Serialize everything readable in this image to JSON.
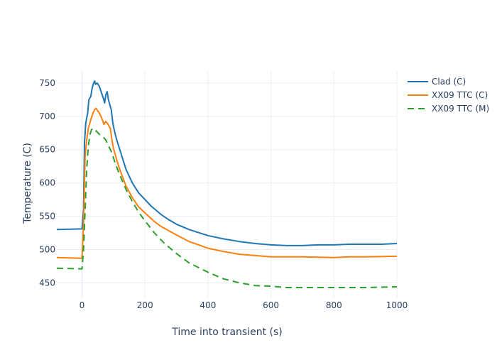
{
  "chart_data": {
    "type": "line",
    "title": "",
    "xlabel": "Time into transient (s)",
    "ylabel": "Temperature (C)",
    "xlim": [
      -80,
      1000
    ],
    "ylim": [
      427,
      768
    ],
    "xticks": [
      0,
      200,
      400,
      600,
      800,
      1000
    ],
    "yticks": [
      450,
      500,
      550,
      600,
      650,
      700,
      750
    ],
    "grid": true,
    "legend_position": "top-right",
    "series": [
      {
        "name": "Clad (C)",
        "color": "#1f77b4",
        "dash": "solid",
        "points": [
          [
            -80,
            530
          ],
          [
            0,
            531
          ],
          [
            5,
            560
          ],
          [
            8,
            660
          ],
          [
            12,
            690
          ],
          [
            18,
            705
          ],
          [
            22,
            725
          ],
          [
            28,
            730
          ],
          [
            32,
            742
          ],
          [
            37,
            750
          ],
          [
            40,
            753
          ],
          [
            43,
            748
          ],
          [
            48,
            750
          ],
          [
            55,
            745
          ],
          [
            62,
            735
          ],
          [
            68,
            727
          ],
          [
            72,
            720
          ],
          [
            76,
            733
          ],
          [
            80,
            737
          ],
          [
            84,
            725
          ],
          [
            88,
            718
          ],
          [
            93,
            710
          ],
          [
            98,
            690
          ],
          [
            103,
            678
          ],
          [
            110,
            665
          ],
          [
            120,
            650
          ],
          [
            130,
            635
          ],
          [
            140,
            620
          ],
          [
            160,
            600
          ],
          [
            180,
            585
          ],
          [
            200,
            575
          ],
          [
            220,
            565
          ],
          [
            250,
            553
          ],
          [
            275,
            545
          ],
          [
            300,
            538
          ],
          [
            340,
            530
          ],
          [
            400,
            521
          ],
          [
            450,
            516
          ],
          [
            500,
            512
          ],
          [
            550,
            509
          ],
          [
            600,
            507
          ],
          [
            650,
            506
          ],
          [
            700,
            506
          ],
          [
            750,
            507
          ],
          [
            800,
            507
          ],
          [
            850,
            508
          ],
          [
            900,
            508
          ],
          [
            950,
            508
          ],
          [
            1000,
            509
          ]
        ]
      },
      {
        "name": "XX09 TTC (C)",
        "color": "#ff7f0e",
        "dash": "solid",
        "points": [
          [
            -80,
            488
          ],
          [
            0,
            487
          ],
          [
            5,
            540
          ],
          [
            10,
            640
          ],
          [
            15,
            665
          ],
          [
            20,
            682
          ],
          [
            28,
            695
          ],
          [
            35,
            705
          ],
          [
            40,
            710
          ],
          [
            45,
            712
          ],
          [
            50,
            708
          ],
          [
            55,
            705
          ],
          [
            62,
            698
          ],
          [
            70,
            688
          ],
          [
            75,
            692
          ],
          [
            80,
            690
          ],
          [
            85,
            686
          ],
          [
            90,
            682
          ],
          [
            95,
            665
          ],
          [
            100,
            652
          ],
          [
            110,
            635
          ],
          [
            120,
            620
          ],
          [
            140,
            595
          ],
          [
            160,
            578
          ],
          [
            180,
            564
          ],
          [
            200,
            555
          ],
          [
            230,
            542
          ],
          [
            250,
            535
          ],
          [
            300,
            522
          ],
          [
            340,
            512
          ],
          [
            400,
            502
          ],
          [
            450,
            497
          ],
          [
            500,
            493
          ],
          [
            550,
            491
          ],
          [
            600,
            489
          ],
          [
            700,
            489
          ],
          [
            800,
            488
          ],
          [
            850,
            489
          ],
          [
            900,
            489
          ],
          [
            1000,
            490
          ]
        ]
      },
      {
        "name": "XX09 TTC (M)",
        "color": "#2ca02c",
        "dash": "dash",
        "points": [
          [
            -80,
            472
          ],
          [
            0,
            471
          ],
          [
            5,
            500
          ],
          [
            10,
            560
          ],
          [
            15,
            620
          ],
          [
            20,
            655
          ],
          [
            25,
            672
          ],
          [
            30,
            680
          ],
          [
            38,
            682
          ],
          [
            45,
            678
          ],
          [
            55,
            673
          ],
          [
            65,
            670
          ],
          [
            75,
            665
          ],
          [
            85,
            655
          ],
          [
            95,
            645
          ],
          [
            105,
            630
          ],
          [
            120,
            612
          ],
          [
            140,
            590
          ],
          [
            160,
            572
          ],
          [
            180,
            556
          ],
          [
            200,
            543
          ],
          [
            230,
            525
          ],
          [
            260,
            510
          ],
          [
            300,
            494
          ],
          [
            340,
            480
          ],
          [
            400,
            466
          ],
          [
            450,
            456
          ],
          [
            500,
            450
          ],
          [
            550,
            446
          ],
          [
            600,
            445
          ],
          [
            650,
            443
          ],
          [
            700,
            443
          ],
          [
            800,
            443
          ],
          [
            900,
            443
          ],
          [
            1000,
            444
          ]
        ]
      }
    ]
  }
}
